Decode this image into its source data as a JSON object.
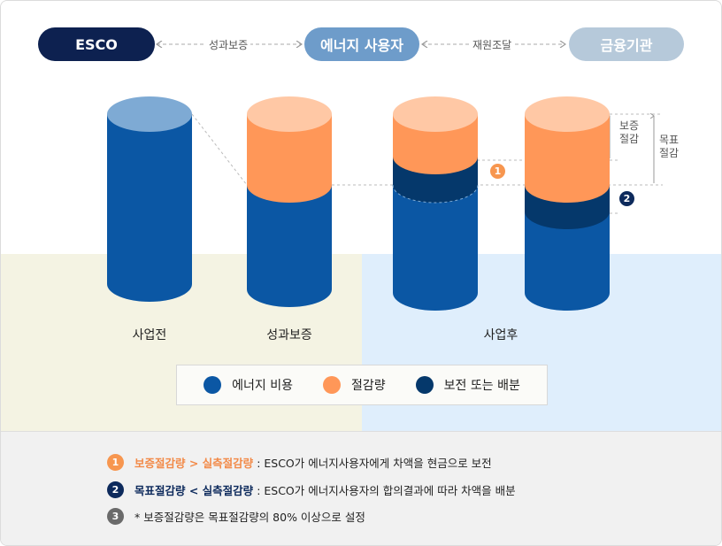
{
  "colors": {
    "energy_cost": "#0b57a4",
    "savings": "#ff9758",
    "guarantee": "#05386b",
    "cap_before": "#7eaad4",
    "cap_savings": "#ffc8a5",
    "esco_pill": "#0d2150",
    "user_pill": "#6e9cca",
    "finance_pill": "#b6c9da",
    "note3": "#6a6a6a"
  },
  "flow": {
    "esco": "ESCO",
    "user": "에너지 사용자",
    "finance": "금융기관",
    "link1": "성과보증",
    "link2": "재원조달"
  },
  "columns": {
    "before": "사업전",
    "guarantee": "성과보증",
    "after": "사업후"
  },
  "side_labels": {
    "guaranteed_savings": "보증\n절감",
    "target_savings": "목표\n절감"
  },
  "badges": [
    "1",
    "2"
  ],
  "legend": [
    {
      "label": "에너지 비용",
      "color": "#0b57a4"
    },
    {
      "label": "절감량",
      "color": "#ff9758"
    },
    {
      "label": "보전 또는 배분",
      "color": "#05386b"
    }
  ],
  "notes": [
    {
      "num": "1",
      "highlight": "보증절감량 > 실측절감량",
      "text": ": ESCO가 에너지사용자에게 차액을 현금으로 보전",
      "hl_color": "#f28a48",
      "num_color": "#f7964f"
    },
    {
      "num": "2",
      "highlight": "목표절감량 < 실측절감량",
      "text": ": ESCO가 에너지사용자의 합의결과에 따라 차액을 배분",
      "hl_color": "#0d2a5c",
      "num_color": "#0d2a5c"
    },
    {
      "num": "3",
      "highlight": "",
      "text": "* 보증절감량은 목표절감량의 80% 이상으로 설정",
      "hl_color": "#222222",
      "num_color": "#6a6a6a"
    }
  ]
}
